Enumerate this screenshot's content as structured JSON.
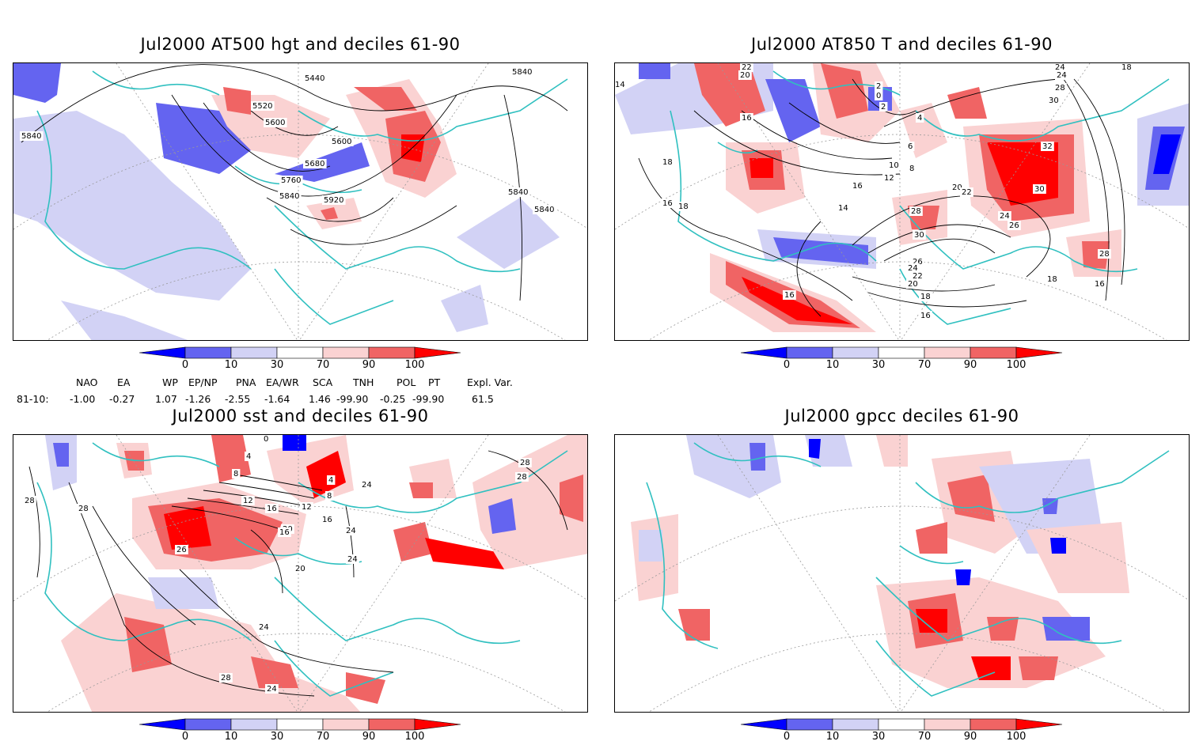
{
  "panels": [
    {
      "title": "Jul2000 AT500 hgt and deciles 61-90",
      "contour_labels": [
        "5440",
        "5840",
        "5520",
        "5600",
        "5600",
        "5680",
        "5760",
        "5840",
        "5920",
        "5840",
        "5840",
        "5840"
      ]
    },
    {
      "title": "Jul2000 AT850 T and deciles 61-90",
      "contour_labels": [
        "22",
        "20",
        "14",
        "16",
        "18",
        "16",
        "14",
        "12",
        "10",
        "8",
        "6",
        "2",
        "0",
        "2",
        "4",
        "24",
        "24",
        "28",
        "30",
        "18",
        "32",
        "30",
        "20",
        "22",
        "24",
        "26",
        "28",
        "30",
        "26",
        "24",
        "22",
        "20",
        "18",
        "16",
        "16",
        "16",
        "18",
        "28",
        "16",
        "18"
      ]
    },
    {
      "title": "Jul2000 sst and deciles 61-90",
      "contour_labels": [
        "0",
        "4",
        "8",
        "12",
        "16",
        "20",
        "24",
        "24",
        "26",
        "28",
        "28",
        "28",
        "24",
        "28",
        "24",
        "20",
        "16",
        "12",
        "8",
        "4",
        "16",
        "24",
        "28"
      ]
    },
    {
      "title": "Jul2000 gpcc deciles 61-90",
      "contour_labels": []
    }
  ],
  "colorbar": {
    "colors": [
      "#0000ff",
      "#6464f0",
      "#d2d2f5",
      "#ffffff",
      "#fad2d2",
      "#f06464",
      "#ff0000"
    ],
    "tick_labels": [
      "0",
      "10",
      "30",
      "70",
      "90",
      "100"
    ]
  },
  "indices": {
    "headers": [
      "NAO",
      "EA",
      "WP",
      "EP/NP",
      "PNA",
      "EA/WR",
      "SCA",
      "TNH",
      "POL",
      "PT",
      "Expl. Var."
    ],
    "row_label": "81-10:",
    "values": [
      "-1.00",
      "-0.27",
      "1.07",
      "-1.26",
      "-2.55",
      "-1.64",
      "1.46",
      "-99.90",
      "-0.25",
      "-99.90",
      "61.5"
    ]
  },
  "colors": {
    "coast": "#30c0c0",
    "contour": "#000000",
    "grid": "#999999"
  }
}
